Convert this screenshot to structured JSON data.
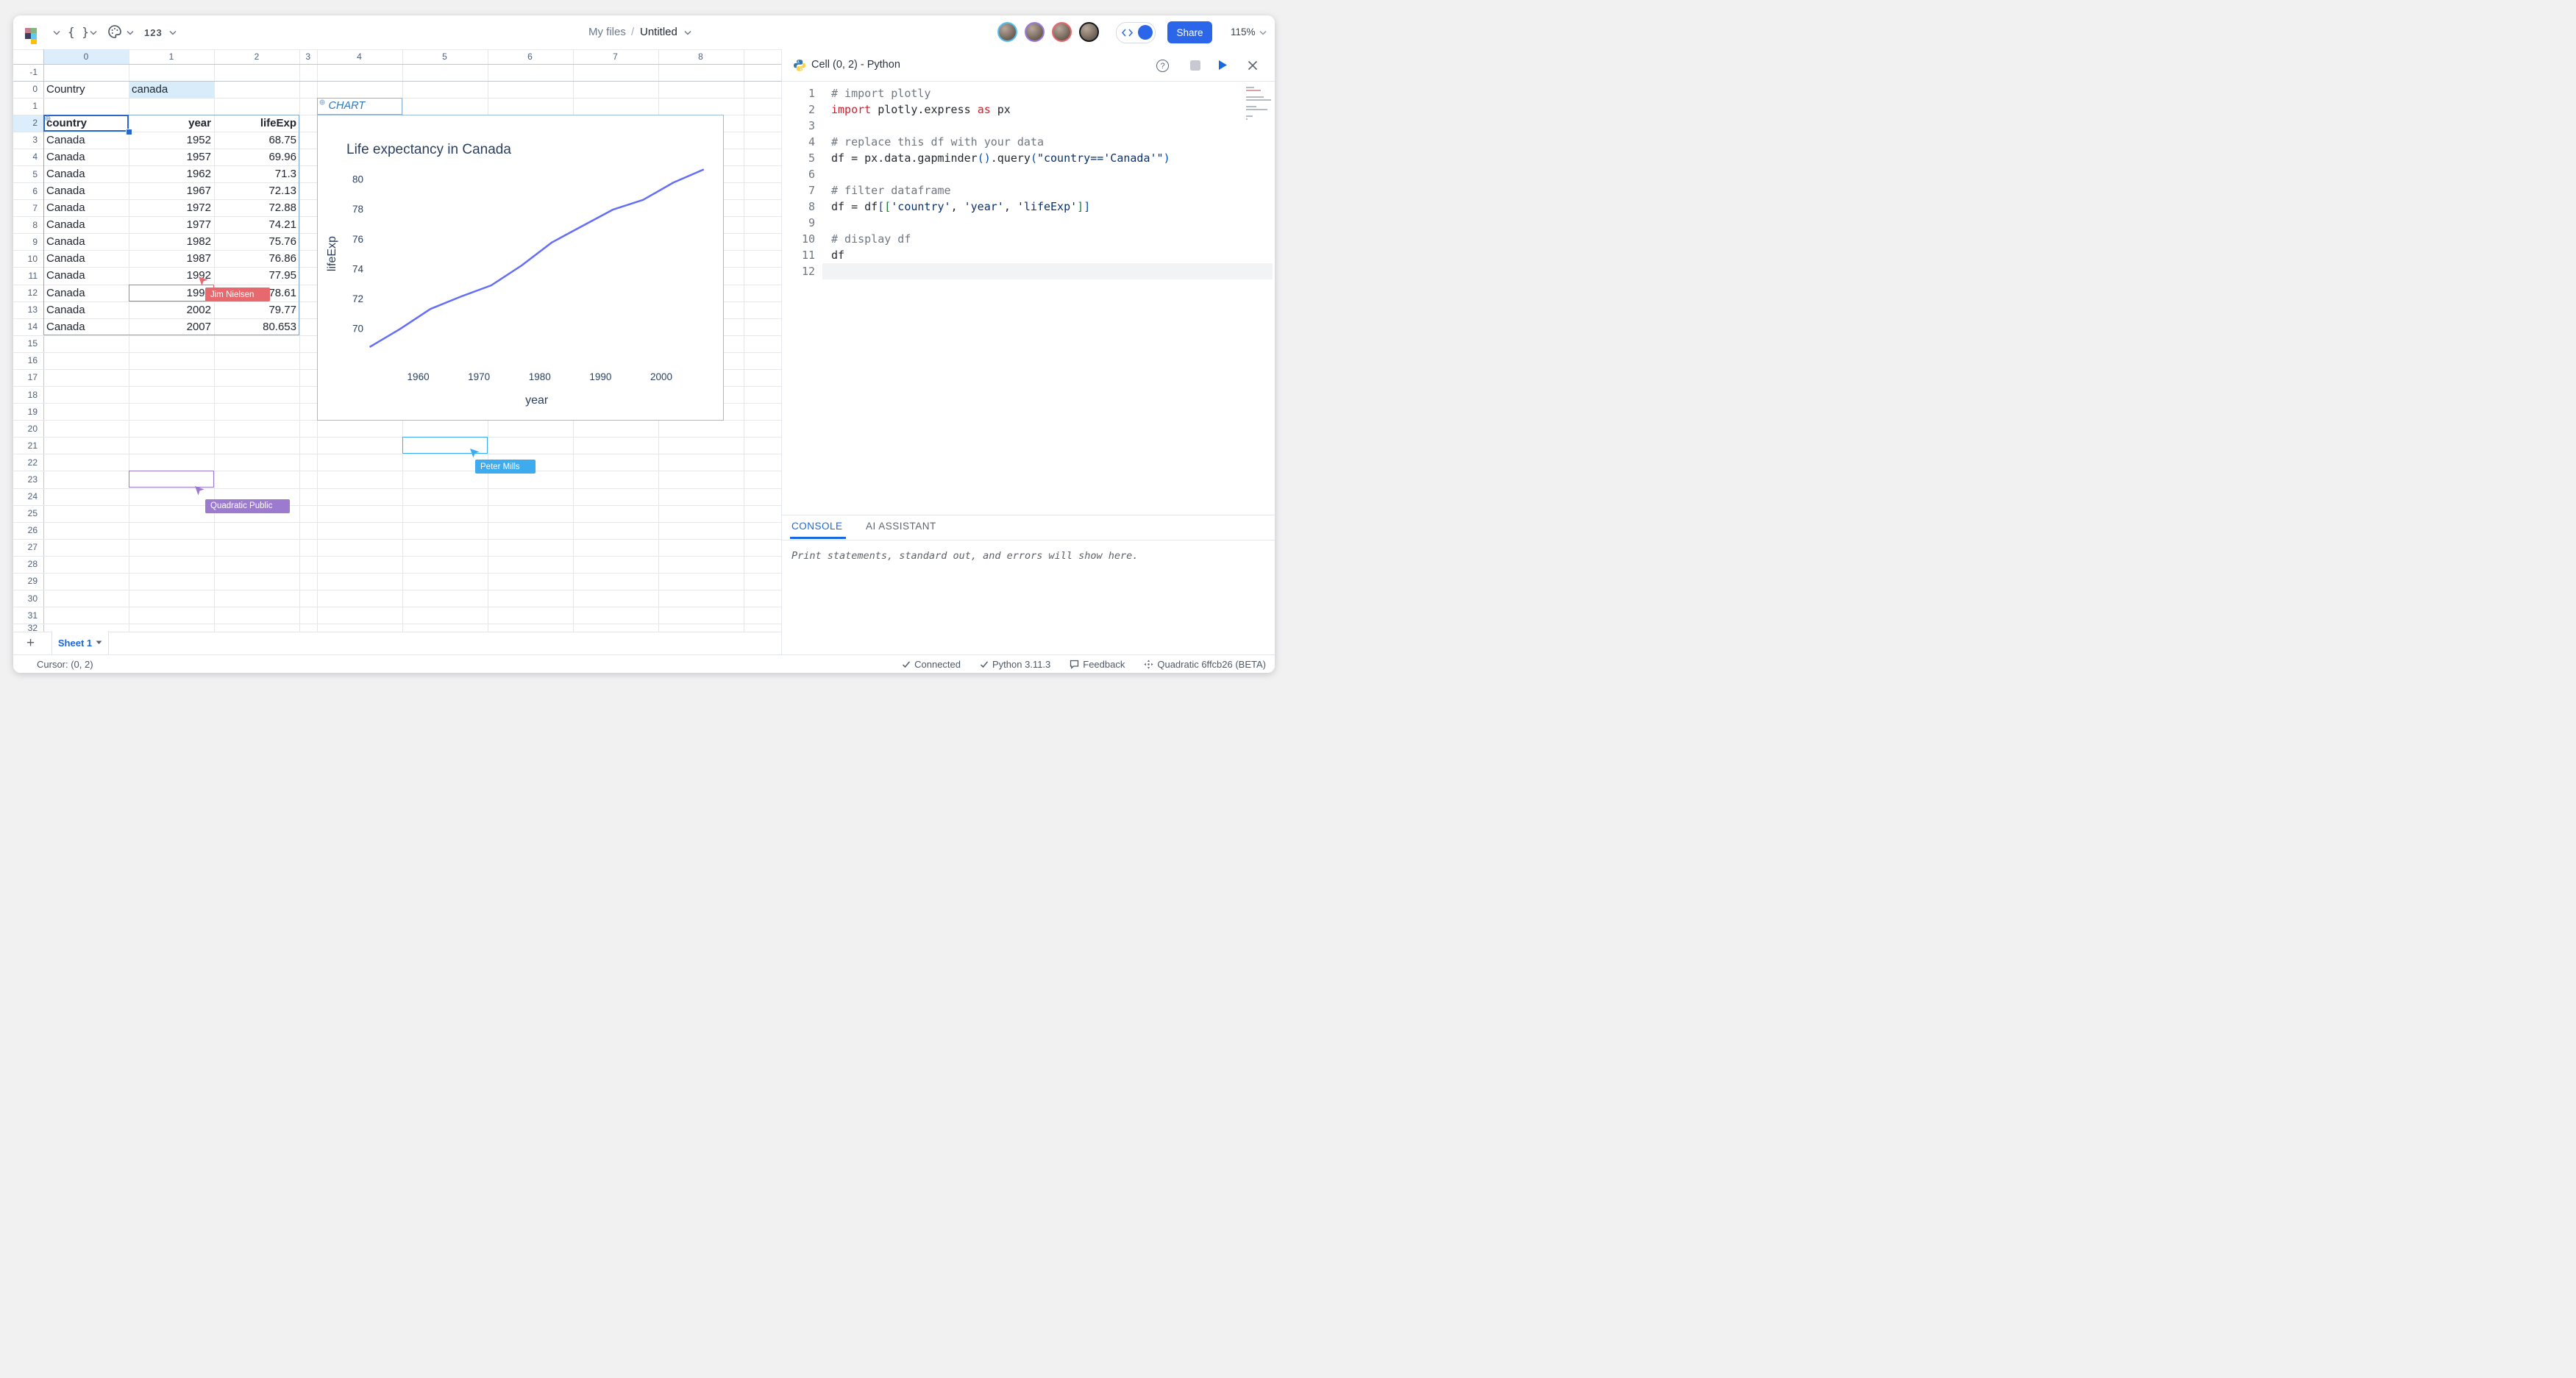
{
  "topbar": {
    "breadcrumb": {
      "root": "My files",
      "separator": "/",
      "title": "Untitled"
    },
    "braces_label": "{ }",
    "number_format_label": "123",
    "share_label": "Share",
    "zoom_value": "115%",
    "collaborator_ring_colors": [
      "#54c0f5",
      "#9a7ae0",
      "#e8696d",
      "#15181c"
    ]
  },
  "grid": {
    "column_headers": [
      "0",
      "1",
      "2",
      "3",
      "4",
      "5",
      "6",
      "7",
      "8"
    ],
    "row_first": -1,
    "row_last": 32,
    "selected_column": "0",
    "selected_row": "2",
    "cells": {
      "country_label": "Country",
      "country_value": "canada"
    },
    "table": {
      "headers": [
        "country",
        "year",
        "lifeExp"
      ],
      "rows": [
        [
          "Canada",
          "1952",
          "68.75"
        ],
        [
          "Canada",
          "1957",
          "69.96"
        ],
        [
          "Canada",
          "1962",
          "71.3"
        ],
        [
          "Canada",
          "1967",
          "72.13"
        ],
        [
          "Canada",
          "1972",
          "72.88"
        ],
        [
          "Canada",
          "1977",
          "74.21"
        ],
        [
          "Canada",
          "1982",
          "75.76"
        ],
        [
          "Canada",
          "1987",
          "76.86"
        ],
        [
          "Canada",
          "1992",
          "77.95"
        ],
        [
          "Canada",
          "1997",
          "78.61"
        ],
        [
          "Canada",
          "2002",
          "79.77"
        ],
        [
          "Canada",
          "2007",
          "80.653"
        ]
      ]
    },
    "chart_tag_label": "CHART",
    "collaborators": [
      {
        "name": "Jim Nielsen",
        "color": "#e8696d"
      },
      {
        "name": "Peter Mills",
        "color": "#3fabef"
      },
      {
        "name": "Quadratic Public",
        "color": "#9b7ad0"
      }
    ]
  },
  "chart_data": {
    "type": "line",
    "title": "Life expectancy in Canada",
    "xlabel": "year",
    "ylabel": "lifeExp",
    "x": [
      1952,
      1957,
      1962,
      1967,
      1972,
      1977,
      1982,
      1987,
      1992,
      1997,
      2002,
      2007
    ],
    "y": [
      68.75,
      69.96,
      71.3,
      72.13,
      72.88,
      74.21,
      75.76,
      76.86,
      77.95,
      78.61,
      79.77,
      80.653
    ],
    "x_ticks": [
      1960,
      1970,
      1980,
      1990,
      2000
    ],
    "y_ticks": [
      70,
      72,
      74,
      76,
      78,
      80
    ],
    "xlim": [
      1949,
      2010
    ],
    "ylim": [
      68.1,
      81.3
    ],
    "grid": false,
    "legend": "none",
    "line_color": "#636efa",
    "text_color": "#2a3f5f"
  },
  "panel": {
    "title": "Cell (0, 2) - Python",
    "language": "Python",
    "code_lines": [
      [
        [
          "com",
          "# import plotly"
        ]
      ],
      [
        [
          "kw",
          "import"
        ],
        [
          "pl",
          " plotly.express "
        ],
        [
          "kw",
          "as"
        ],
        [
          "pl",
          " px"
        ]
      ],
      [],
      [
        [
          "com",
          "# replace this df with your data"
        ]
      ],
      [
        [
          "pl",
          "df = px.data.gapminder"
        ],
        [
          "b1",
          "()"
        ],
        [
          "pl",
          ".query"
        ],
        [
          "b1",
          "("
        ],
        [
          "str",
          "\"country=='Canada'\""
        ],
        [
          "b1",
          ")"
        ]
      ],
      [],
      [
        [
          "com",
          "# filter dataframe"
        ]
      ],
      [
        [
          "pl",
          "df = df"
        ],
        [
          "b1",
          "["
        ],
        [
          "b2",
          "["
        ],
        [
          "str",
          "'country'"
        ],
        [
          "pl",
          ", "
        ],
        [
          "str",
          "'year'"
        ],
        [
          "pl",
          ", "
        ],
        [
          "str",
          "'lifeExp'"
        ],
        [
          "b2",
          "]"
        ],
        [
          "b1",
          "]"
        ]
      ],
      [],
      [
        [
          "com",
          "# display df"
        ]
      ],
      [
        [
          "pl",
          "df"
        ]
      ],
      []
    ],
    "tabs": [
      {
        "label": "CONSOLE",
        "active": true
      },
      {
        "label": "AI ASSISTANT",
        "active": false
      }
    ],
    "console_placeholder": "Print statements, standard out, and errors will show here."
  },
  "sheet_bar": {
    "add_label": "+",
    "sheets": [
      {
        "name": "Sheet 1",
        "active": true
      }
    ]
  },
  "status_bar": {
    "cursor": "Cursor: (0, 2)",
    "items": [
      {
        "icon": "check",
        "label": "Connected"
      },
      {
        "icon": "check",
        "label": "Python 3.11.3"
      },
      {
        "icon": "feedback",
        "label": "Feedback"
      },
      {
        "icon": "version",
        "label": "Quadratic 6ffcb26 (BETA)"
      }
    ]
  }
}
